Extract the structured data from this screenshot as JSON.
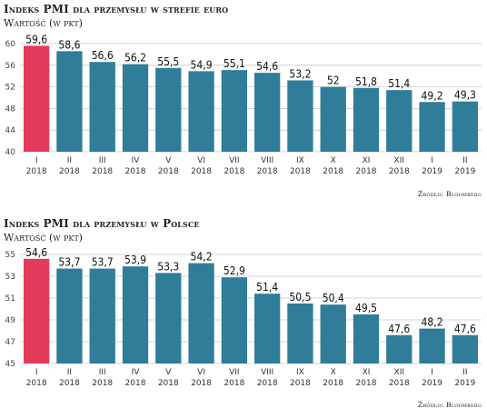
{
  "chart_data": [
    {
      "type": "bar",
      "title": "Indeks PMI dla przemysłu w strefie euro",
      "subtitle": "Wartość (w pkt)",
      "source": "Źródło: Bloomberg",
      "categories": [
        "I\n2018",
        "II\n2018",
        "III\n2018",
        "IV\n2018",
        "V\n2018",
        "VI\n2018",
        "VII\n2018",
        "VIII\n2018",
        "IX\n2018",
        "X\n2018",
        "XI\n2018",
        "XII\n2018",
        "I\n2019",
        "II\n2019"
      ],
      "value_labels": [
        "59,6",
        "58,6",
        "56,6",
        "56,2",
        "55,5",
        "54,9",
        "55,1",
        "54,6",
        "53,2",
        "52",
        "51,8",
        "51,4",
        "49,2",
        "49,3"
      ],
      "values": [
        59.6,
        58.6,
        56.6,
        56.2,
        55.5,
        54.9,
        55.1,
        54.6,
        53.2,
        52.0,
        51.8,
        51.4,
        49.2,
        49.3
      ],
      "ylim": [
        40,
        60
      ],
      "yticks": [
        40,
        44,
        48,
        52,
        56,
        60
      ],
      "highlight_index": 0,
      "colors": {
        "highlight": "#e33b5c",
        "bar": "#2f7d99",
        "grid": "#c8c8c8"
      },
      "grid": true
    },
    {
      "type": "bar",
      "title": "Indeks PMI dla przemysłu w Polsce",
      "subtitle": "Wartość (w pkt)",
      "source": "Źródło: Bloomberg",
      "categories": [
        "I\n2018",
        "II\n2018",
        "III\n2018",
        "IV\n2018",
        "V\n2018",
        "VI\n2018",
        "VII\n2018",
        "VIII\n2018",
        "IX\n2018",
        "X\n2018",
        "XI\n2018",
        "XII\n2018",
        "I\n2019",
        "II\n2019"
      ],
      "value_labels": [
        "54,6",
        "53,7",
        "53,7",
        "53,9",
        "53,3",
        "54,2",
        "52,9",
        "51,4",
        "50,5",
        "50,4",
        "49,5",
        "47,6",
        "48,2",
        "47,6"
      ],
      "values": [
        54.6,
        53.7,
        53.7,
        53.9,
        53.3,
        54.2,
        52.9,
        51.4,
        50.5,
        50.4,
        49.5,
        47.6,
        48.2,
        47.6
      ],
      "ylim": [
        45,
        55
      ],
      "yticks": [
        45,
        47,
        49,
        51,
        53,
        55
      ],
      "highlight_index": 0,
      "colors": {
        "highlight": "#e33b5c",
        "bar": "#2f7d99",
        "grid": "#c8c8c8"
      },
      "grid": true
    }
  ]
}
